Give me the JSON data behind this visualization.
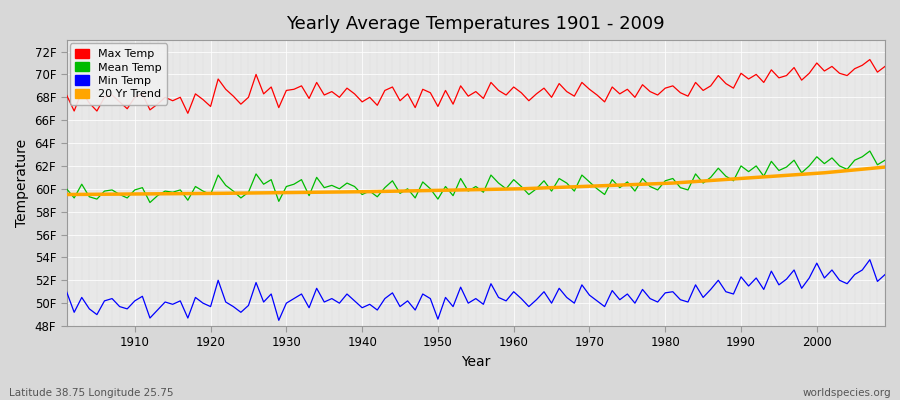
{
  "title": "Yearly Average Temperatures 1901 - 2009",
  "xlabel": "Year",
  "ylabel": "Temperature",
  "lat_lon_label": "Latitude 38.75 Longitude 25.75",
  "source_label": "worldspecies.org",
  "ylim": [
    48,
    73
  ],
  "yticks": [
    48,
    50,
    52,
    54,
    56,
    58,
    60,
    62,
    64,
    66,
    68,
    70,
    72
  ],
  "ytick_labels": [
    "48F",
    "50F",
    "52F",
    "54F",
    "56F",
    "58F",
    "60F",
    "62F",
    "64F",
    "66F",
    "68F",
    "70F",
    "72F"
  ],
  "xlim": [
    1901,
    2009
  ],
  "xticks": [
    1910,
    1920,
    1930,
    1940,
    1950,
    1960,
    1970,
    1980,
    1990,
    2000
  ],
  "legend_entries": [
    "Max Temp",
    "Mean Temp",
    "Min Temp",
    "20 Yr Trend"
  ],
  "legend_colors": [
    "#ff0000",
    "#00bb00",
    "#0000ff",
    "#ffa500"
  ],
  "max_temp_color": "#ff0000",
  "mean_temp_color": "#00bb00",
  "min_temp_color": "#0000ff",
  "trend_color": "#ffa500",
  "years": [
    1901,
    1902,
    1903,
    1904,
    1905,
    1906,
    1907,
    1908,
    1909,
    1910,
    1911,
    1912,
    1913,
    1914,
    1915,
    1916,
    1917,
    1918,
    1919,
    1920,
    1921,
    1922,
    1923,
    1924,
    1925,
    1926,
    1927,
    1928,
    1929,
    1930,
    1931,
    1932,
    1933,
    1934,
    1935,
    1936,
    1937,
    1938,
    1939,
    1940,
    1941,
    1942,
    1943,
    1944,
    1945,
    1946,
    1947,
    1948,
    1949,
    1950,
    1951,
    1952,
    1953,
    1954,
    1955,
    1956,
    1957,
    1958,
    1959,
    1960,
    1961,
    1962,
    1963,
    1964,
    1965,
    1966,
    1967,
    1968,
    1969,
    1970,
    1971,
    1972,
    1973,
    1974,
    1975,
    1976,
    1977,
    1978,
    1979,
    1980,
    1981,
    1982,
    1983,
    1984,
    1985,
    1986,
    1987,
    1988,
    1989,
    1990,
    1991,
    1992,
    1993,
    1994,
    1995,
    1996,
    1997,
    1998,
    1999,
    2000,
    2001,
    2002,
    2003,
    2004,
    2005,
    2006,
    2007,
    2008,
    2009
  ],
  "max_temps": [
    68.2,
    66.8,
    68.5,
    67.5,
    66.8,
    68.0,
    68.2,
    67.6,
    67.0,
    68.0,
    68.3,
    66.9,
    67.4,
    68.0,
    67.7,
    68.0,
    66.6,
    68.3,
    67.8,
    67.2,
    69.6,
    68.7,
    68.1,
    67.4,
    68.0,
    70.0,
    68.3,
    68.9,
    67.1,
    68.6,
    68.7,
    69.0,
    67.9,
    69.3,
    68.2,
    68.5,
    68.0,
    68.8,
    68.3,
    67.6,
    68.0,
    67.3,
    68.6,
    68.9,
    67.7,
    68.3,
    67.1,
    68.7,
    68.4,
    67.2,
    68.6,
    67.4,
    69.0,
    68.1,
    68.5,
    67.9,
    69.3,
    68.6,
    68.2,
    68.9,
    68.4,
    67.7,
    68.3,
    68.8,
    68.0,
    69.2,
    68.5,
    68.1,
    69.3,
    68.7,
    68.2,
    67.6,
    68.9,
    68.3,
    68.7,
    68.0,
    69.1,
    68.5,
    68.2,
    68.8,
    69.0,
    68.4,
    68.1,
    69.3,
    68.6,
    69.0,
    69.9,
    69.2,
    68.8,
    70.1,
    69.6,
    70.0,
    69.3,
    70.4,
    69.7,
    69.9,
    70.6,
    69.5,
    70.1,
    71.0,
    70.3,
    70.7,
    70.1,
    69.9,
    70.5,
    70.8,
    71.3,
    70.2,
    70.7
  ],
  "mean_temps": [
    60.0,
    59.2,
    60.4,
    59.3,
    59.1,
    59.8,
    59.9,
    59.5,
    59.2,
    59.9,
    60.1,
    58.8,
    59.4,
    59.8,
    59.7,
    59.9,
    59.0,
    60.2,
    59.8,
    59.5,
    61.2,
    60.3,
    59.8,
    59.2,
    59.7,
    61.3,
    60.4,
    60.8,
    58.9,
    60.2,
    60.4,
    60.8,
    59.4,
    61.0,
    60.1,
    60.3,
    60.0,
    60.5,
    60.2,
    59.5,
    59.8,
    59.3,
    60.1,
    60.7,
    59.6,
    60.0,
    59.2,
    60.6,
    60.0,
    59.1,
    60.2,
    59.4,
    60.9,
    59.8,
    60.2,
    59.7,
    61.2,
    60.5,
    60.0,
    60.8,
    60.2,
    59.5,
    60.0,
    60.7,
    59.8,
    60.9,
    60.5,
    59.8,
    61.2,
    60.6,
    60.0,
    59.5,
    60.8,
    60.1,
    60.6,
    59.8,
    60.9,
    60.2,
    59.9,
    60.7,
    60.9,
    60.1,
    59.9,
    61.3,
    60.5,
    61.0,
    61.8,
    61.1,
    60.7,
    62.0,
    61.5,
    62.0,
    61.1,
    62.4,
    61.6,
    61.9,
    62.5,
    61.4,
    62.0,
    62.8,
    62.2,
    62.7,
    62.0,
    61.7,
    62.5,
    62.8,
    63.3,
    62.1,
    62.5
  ],
  "min_temps": [
    51.0,
    49.2,
    50.5,
    49.5,
    49.0,
    50.2,
    50.4,
    49.7,
    49.5,
    50.2,
    50.6,
    48.7,
    49.4,
    50.1,
    49.9,
    50.2,
    48.7,
    50.5,
    50.0,
    49.7,
    52.0,
    50.1,
    49.7,
    49.2,
    49.8,
    51.8,
    50.1,
    50.8,
    48.5,
    50.0,
    50.4,
    50.8,
    49.6,
    51.3,
    50.1,
    50.4,
    50.0,
    50.8,
    50.2,
    49.6,
    49.9,
    49.4,
    50.4,
    50.9,
    49.7,
    50.2,
    49.4,
    50.8,
    50.4,
    48.6,
    50.5,
    49.7,
    51.4,
    50.0,
    50.4,
    49.9,
    51.7,
    50.5,
    50.2,
    51.0,
    50.4,
    49.7,
    50.3,
    51.0,
    50.0,
    51.3,
    50.5,
    50.0,
    51.6,
    50.7,
    50.2,
    49.7,
    51.1,
    50.3,
    50.8,
    50.0,
    51.2,
    50.4,
    50.1,
    50.9,
    51.0,
    50.3,
    50.1,
    51.6,
    50.5,
    51.2,
    52.0,
    51.0,
    50.8,
    52.3,
    51.5,
    52.2,
    51.2,
    52.8,
    51.6,
    52.1,
    52.9,
    51.3,
    52.2,
    53.5,
    52.2,
    52.9,
    52.0,
    51.7,
    52.5,
    52.9,
    53.8,
    51.9,
    52.5
  ],
  "trend_years": [
    1901,
    1921,
    1941,
    1961,
    1981,
    2001,
    2009
  ],
  "trend_vals": [
    59.5,
    59.6,
    59.75,
    60.0,
    60.5,
    61.4,
    61.9
  ]
}
